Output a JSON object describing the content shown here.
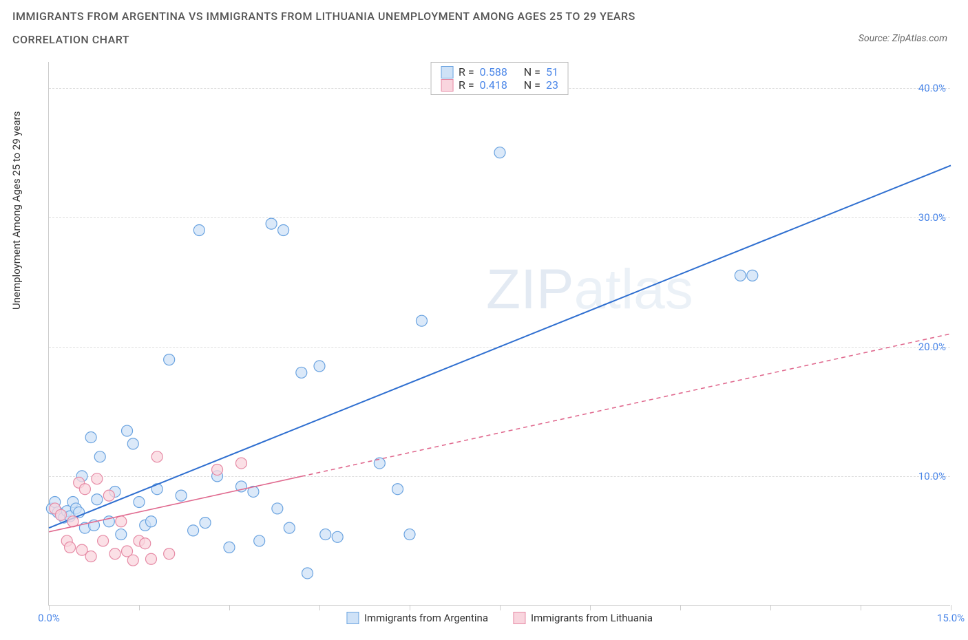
{
  "title_line1": "IMMIGRANTS FROM ARGENTINA VS IMMIGRANTS FROM LITHUANIA UNEMPLOYMENT AMONG AGES 25 TO 29 YEARS",
  "title_line2": "CORRELATION CHART",
  "source_prefix": "Source: ",
  "source_name": "ZipAtlas.com",
  "ylabel": "Unemployment Among Ages 25 to 29 years",
  "watermark_bold": "ZIP",
  "watermark_thin": "atlas",
  "chart": {
    "type": "scatter",
    "xlim": [
      0,
      15
    ],
    "ylim": [
      0,
      42
    ],
    "xtick_positions": [
      0,
      1.5,
      3.0,
      4.5,
      6.0,
      7.5,
      9.0,
      10.5,
      12.0,
      13.5,
      15.0
    ],
    "xtick_labels_shown": {
      "0": "0.0%",
      "15": "15.0%"
    },
    "ytick_positions": [
      10,
      20,
      30,
      40
    ],
    "ytick_labels": {
      "10": "10.0%",
      "20": "20.0%",
      "30": "30.0%",
      "40": "40.0%"
    },
    "background_color": "#ffffff",
    "grid_color": "#dddddd",
    "axis_color": "#cccccc",
    "tick_label_color": "#4a86e8",
    "y_axis_title_color": "#333333",
    "marker_radius": 8,
    "marker_stroke_width": 1.2,
    "series": [
      {
        "name": "Immigrants from Argentina",
        "fill_color": "#cfe2f7",
        "stroke_color": "#6aa3e0",
        "line_color": "#2f6fd0",
        "line_width": 2,
        "line_dash_extrapolate": false,
        "R": "0.588",
        "N": "51",
        "trend": {
          "x1": 0,
          "y1": 6.0,
          "x2": 15,
          "y2": 34.0
        },
        "solid_until_x": 15,
        "points": [
          [
            0.05,
            7.5
          ],
          [
            0.1,
            8.0
          ],
          [
            0.15,
            7.2
          ],
          [
            0.2,
            7.0
          ],
          [
            0.25,
            6.8
          ],
          [
            0.3,
            7.3
          ],
          [
            0.35,
            6.9
          ],
          [
            0.4,
            8.0
          ],
          [
            0.45,
            7.5
          ],
          [
            0.5,
            7.2
          ],
          [
            0.55,
            10.0
          ],
          [
            0.6,
            6.0
          ],
          [
            0.7,
            13.0
          ],
          [
            0.75,
            6.2
          ],
          [
            0.8,
            8.2
          ],
          [
            0.85,
            11.5
          ],
          [
            1.0,
            6.5
          ],
          [
            1.1,
            8.8
          ],
          [
            1.2,
            5.5
          ],
          [
            1.3,
            13.5
          ],
          [
            1.4,
            12.5
          ],
          [
            1.5,
            8.0
          ],
          [
            1.6,
            6.2
          ],
          [
            1.7,
            6.5
          ],
          [
            1.8,
            9.0
          ],
          [
            2.0,
            19.0
          ],
          [
            2.2,
            8.5
          ],
          [
            2.4,
            5.8
          ],
          [
            2.5,
            29.0
          ],
          [
            2.6,
            6.4
          ],
          [
            2.8,
            10.0
          ],
          [
            3.0,
            4.5
          ],
          [
            3.2,
            9.2
          ],
          [
            3.4,
            8.8
          ],
          [
            3.5,
            5.0
          ],
          [
            3.7,
            29.5
          ],
          [
            3.8,
            7.5
          ],
          [
            3.9,
            29.0
          ],
          [
            4.0,
            6.0
          ],
          [
            4.2,
            18.0
          ],
          [
            4.3,
            2.5
          ],
          [
            4.5,
            18.5
          ],
          [
            4.6,
            5.5
          ],
          [
            4.8,
            5.3
          ],
          [
            5.5,
            11.0
          ],
          [
            5.8,
            9.0
          ],
          [
            6.0,
            5.5
          ],
          [
            6.2,
            22.0
          ],
          [
            7.5,
            35.0
          ],
          [
            11.5,
            25.5
          ],
          [
            11.7,
            25.5
          ]
        ]
      },
      {
        "name": "Immigrants from Lithuania",
        "fill_color": "#f9d5de",
        "stroke_color": "#e68aa5",
        "line_color": "#e06a8f",
        "line_width": 1.6,
        "line_dash_extrapolate": true,
        "R": "0.418",
        "N": "23",
        "trend": {
          "x1": 0,
          "y1": 5.7,
          "x2": 15,
          "y2": 21.0
        },
        "solid_until_x": 4.2,
        "points": [
          [
            0.1,
            7.5
          ],
          [
            0.2,
            7.0
          ],
          [
            0.3,
            5.0
          ],
          [
            0.35,
            4.5
          ],
          [
            0.4,
            6.5
          ],
          [
            0.5,
            9.5
          ],
          [
            0.55,
            4.3
          ],
          [
            0.6,
            9.0
          ],
          [
            0.7,
            3.8
          ],
          [
            0.8,
            9.8
          ],
          [
            0.9,
            5.0
          ],
          [
            1.0,
            8.5
          ],
          [
            1.1,
            4.0
          ],
          [
            1.2,
            6.5
          ],
          [
            1.3,
            4.2
          ],
          [
            1.4,
            3.5
          ],
          [
            1.5,
            5.0
          ],
          [
            1.6,
            4.8
          ],
          [
            1.7,
            3.6
          ],
          [
            1.8,
            11.5
          ],
          [
            2.0,
            4.0
          ],
          [
            2.8,
            10.5
          ],
          [
            3.2,
            11.0
          ]
        ]
      }
    ]
  },
  "stats_labels": {
    "R": "R =",
    "N": "N ="
  },
  "legend": {
    "series1": "Immigrants from Argentina",
    "series2": "Immigrants from Lithuania"
  }
}
